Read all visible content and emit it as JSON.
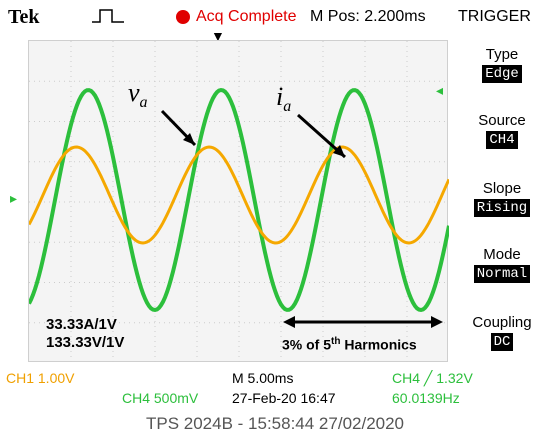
{
  "header": {
    "brand": "Tek",
    "status": "Acq Complete",
    "mpos": "M Pos: 2.200ms",
    "menu_title": "TRIGGER"
  },
  "trigger_menu": [
    {
      "title": "Type",
      "value": "Edge"
    },
    {
      "title": "Source",
      "value": "CH4"
    },
    {
      "title": "Slope",
      "value": "Rising"
    },
    {
      "title": "Mode",
      "value": "Normal"
    },
    {
      "title": "Coupling",
      "value": "DC"
    }
  ],
  "annotations": {
    "va_main": "v",
    "va_sub": "a",
    "ia_main": "i",
    "ia_sub": "a",
    "scale_current": "33.33A/1V",
    "scale_voltage": "133.33V/1V",
    "harm_pre": "3% of 5",
    "harm_sup": "th",
    "harm_post": " Harmonics"
  },
  "status_bar": {
    "ch1": "CH1  1.00V",
    "timebase": "M 5.00ms",
    "trigger": "CH4 ╱ 1.32V",
    "ch4": "CH4  500mV",
    "datetime": "27-Feb-20 16:47",
    "frequency": "60.0139Hz"
  },
  "caption": "TPS 2024B - 15:58:44   27/02/2020",
  "colors": {
    "voltage_trace": "#2cbf3c",
    "current_trace": "#f5a800",
    "accent": "#e00000"
  },
  "chart_data": {
    "type": "line",
    "series": [
      {
        "name": "v_a",
        "frequency_hz": 60.0139,
        "channel": "CH4"
      },
      {
        "name": "i_a",
        "frequency_hz": 60.0139,
        "channel": "CH1"
      }
    ]
  }
}
